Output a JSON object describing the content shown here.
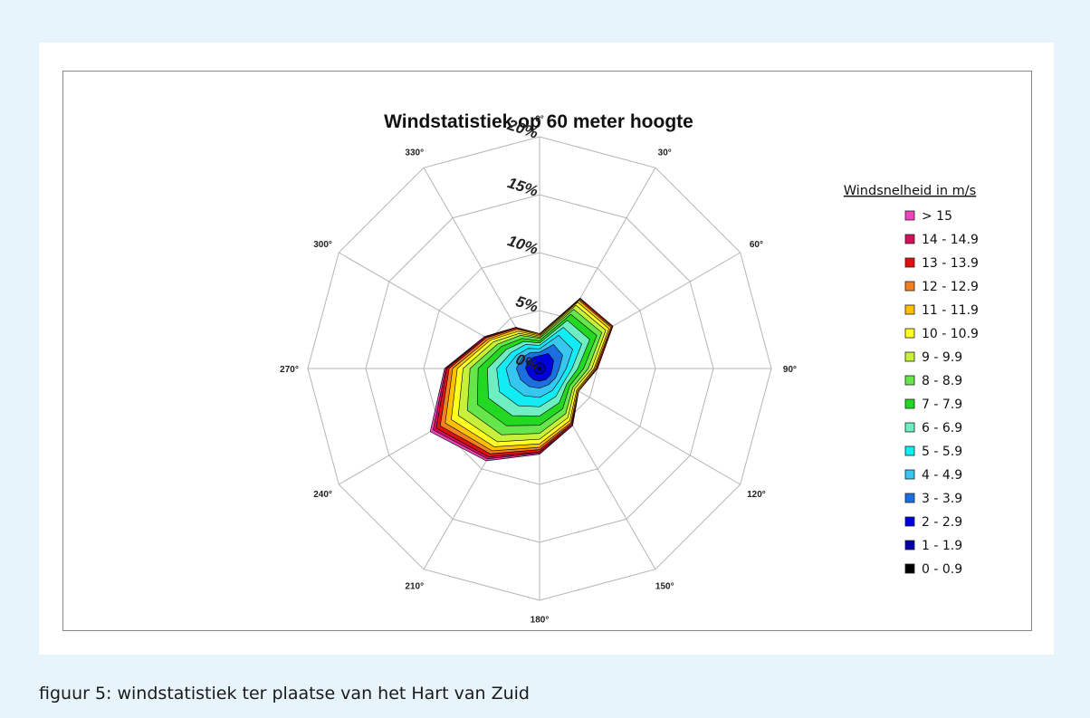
{
  "caption": "figuur 5: windstatistiek ter plaatse van het Hart van Zuid",
  "chart_data": {
    "type": "radar-stacked",
    "title": "Windstatistiek op 60 meter hoogte",
    "directions_deg": [
      0,
      30,
      60,
      90,
      120,
      150,
      180,
      210,
      240,
      270,
      300,
      330
    ],
    "direction_labels": [
      "0°",
      "30°",
      "60°",
      "90°",
      "120°",
      "150°",
      "180°",
      "210°",
      "240°",
      "270°",
      "300°",
      "330°"
    ],
    "radial_ticks": [
      "0%",
      "5%",
      "10%",
      "15%",
      "20%"
    ],
    "radial_max": 20,
    "legend_title": "Windsnelheid in m/s",
    "legend_position": "right",
    "series": [
      {
        "name": "0 - 0.9",
        "color": "#000000",
        "values": [
          0.1,
          0.1,
          0.1,
          0.1,
          0.1,
          0.1,
          0.1,
          0.1,
          0.1,
          0.1,
          0.1,
          0.1
        ]
      },
      {
        "name": "1 - 1.9",
        "color": "#0000a8",
        "values": [
          0.4,
          0.4,
          0.4,
          0.4,
          0.4,
          0.4,
          0.4,
          0.4,
          0.4,
          0.4,
          0.4,
          0.4
        ]
      },
      {
        "name": "2 - 2.9",
        "color": "#0000dd",
        "values": [
          0.6,
          1.0,
          0.9,
          0.6,
          0.6,
          0.6,
          0.6,
          0.6,
          0.6,
          0.7,
          0.7,
          0.6
        ]
      },
      {
        "name": "3 - 3.9",
        "color": "#1b6fde",
        "values": [
          0.3,
          0.9,
          0.9,
          0.6,
          0.5,
          0.5,
          0.6,
          0.7,
          0.8,
          0.8,
          0.6,
          0.5
        ]
      },
      {
        "name": "4 - 4.9",
        "color": "#37c6f0",
        "values": [
          0.3,
          0.9,
          1.0,
          0.6,
          0.4,
          0.6,
          0.8,
          0.9,
          1.0,
          0.9,
          0.5,
          0.4
        ]
      },
      {
        "name": "5 - 5.9",
        "color": "#11ecf5",
        "values": [
          0.3,
          0.8,
          0.9,
          0.5,
          0.4,
          0.6,
          0.8,
          1.0,
          1.1,
          0.8,
          0.5,
          0.4
        ]
      },
      {
        "name": "6 - 6.9",
        "color": "#6feec4",
        "values": [
          0.2,
          0.7,
          0.8,
          0.5,
          0.3,
          0.6,
          0.8,
          1.0,
          1.1,
          0.8,
          0.5,
          0.3
        ]
      },
      {
        "name": "7 - 7.9",
        "color": "#22d822",
        "values": [
          0.2,
          0.6,
          0.7,
          0.5,
          0.3,
          0.6,
          0.8,
          1.0,
          1.1,
          0.8,
          0.5,
          0.3
        ]
      },
      {
        "name": "8 - 8.9",
        "color": "#66e64a",
        "values": [
          0.2,
          0.5,
          0.5,
          0.4,
          0.3,
          0.5,
          0.7,
          0.9,
          1.0,
          0.7,
          0.4,
          0.3
        ]
      },
      {
        "name": "9 - 9.9",
        "color": "#c6f03a",
        "values": [
          0.1,
          0.4,
          0.4,
          0.3,
          0.2,
          0.4,
          0.5,
          0.7,
          0.9,
          0.6,
          0.4,
          0.2
        ]
      },
      {
        "name": "10 - 10.9",
        "color": "#ffff22",
        "values": [
          0.1,
          0.3,
          0.3,
          0.2,
          0.2,
          0.3,
          0.4,
          0.5,
          0.7,
          0.5,
          0.3,
          0.2
        ]
      },
      {
        "name": "11 - 11.9",
        "color": "#ffc000",
        "values": [
          0.1,
          0.2,
          0.2,
          0.1,
          0.1,
          0.2,
          0.3,
          0.4,
          0.6,
          0.4,
          0.2,
          0.2
        ]
      },
      {
        "name": "12 - 12.9",
        "color": "#f08020",
        "values": [
          0.1,
          0.1,
          0.1,
          0.1,
          0.1,
          0.1,
          0.2,
          0.3,
          0.5,
          0.3,
          0.2,
          0.1
        ]
      },
      {
        "name": "13 - 13.9",
        "color": "#e01010",
        "values": [
          0.0,
          0.1,
          0.1,
          0.1,
          0.0,
          0.1,
          0.2,
          0.3,
          0.4,
          0.2,
          0.1,
          0.1
        ]
      },
      {
        "name": "14 - 14.9",
        "color": "#d0105a",
        "values": [
          0.0,
          0.0,
          0.0,
          0.0,
          0.0,
          0.1,
          0.1,
          0.2,
          0.3,
          0.1,
          0.1,
          0.0
        ]
      },
      {
        "name": "> 15",
        "color": "#ee44bb",
        "values": [
          0.0,
          0.0,
          0.0,
          0.0,
          0.0,
          0.0,
          0.1,
          0.2,
          0.3,
          0.1,
          0.0,
          0.0
        ]
      }
    ]
  }
}
